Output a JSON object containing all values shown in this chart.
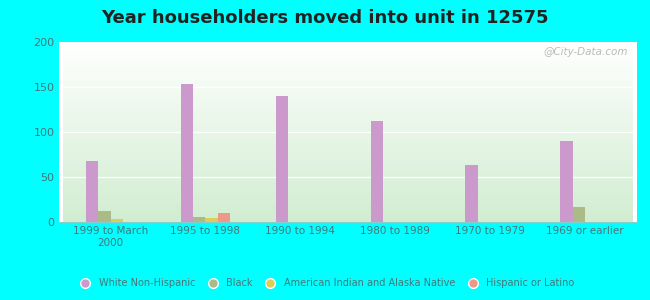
{
  "title": "Year householders moved into unit in 12575",
  "categories": [
    "1999 to March\n2000",
    "1995 to 1998",
    "1990 to 1994",
    "1980 to 1989",
    "1970 to 1979",
    "1969 or earlier"
  ],
  "series": {
    "White Non-Hispanic": [
      68,
      153,
      140,
      112,
      63,
      90
    ],
    "Black": [
      12,
      6,
      0,
      0,
      0,
      17
    ],
    "American Indian and Alaska Native": [
      3,
      5,
      0,
      0,
      0,
      0
    ],
    "Hispanic or Latino": [
      0,
      10,
      0,
      0,
      0,
      0
    ]
  },
  "colors": {
    "White Non-Hispanic": "#cc99cc",
    "Black": "#aabb88",
    "American Indian and Alaska Native": "#ddcc55",
    "Hispanic or Latino": "#ee9988"
  },
  "ylim": [
    0,
    200
  ],
  "yticks": [
    0,
    50,
    100,
    150,
    200
  ],
  "bar_width": 0.13,
  "outer_background": "#00ffff",
  "title_color": "#222222",
  "title_fontsize": 13,
  "watermark": "@City-Data.com",
  "axis_text_color": "#447777"
}
